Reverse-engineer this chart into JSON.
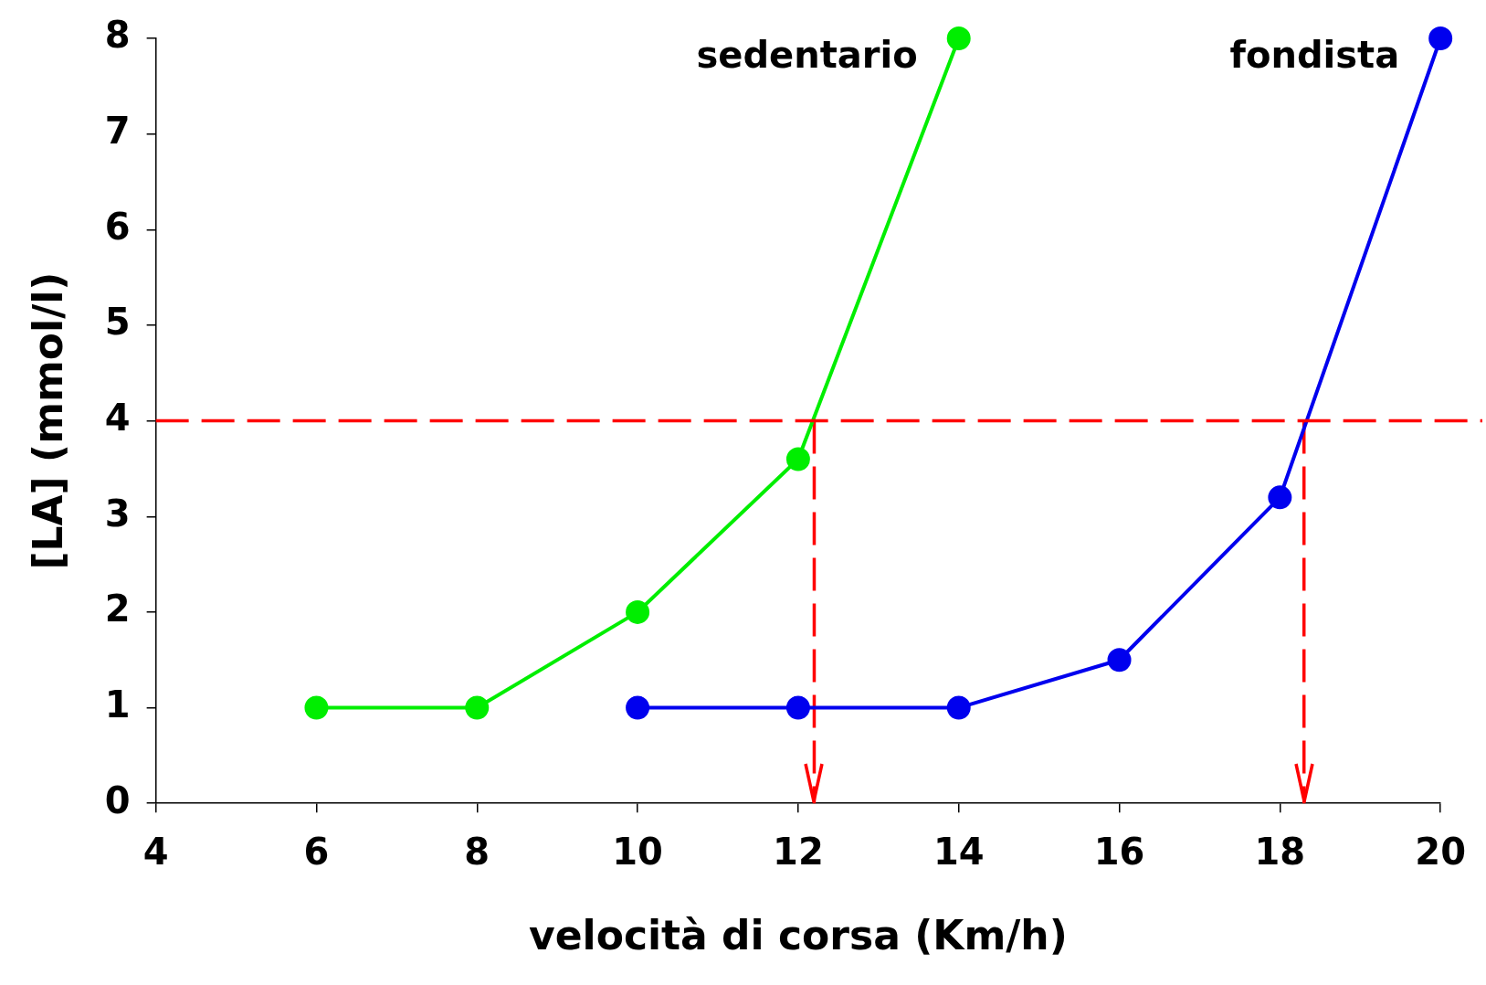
{
  "chart_data": {
    "type": "line",
    "xlabel": "velocità di corsa (Km/h)",
    "ylabel": "[LA] (mmol/l)",
    "xlim": [
      4,
      20
    ],
    "xticks": [
      4,
      6,
      8,
      10,
      12,
      14,
      16,
      18,
      20
    ],
    "ylim": [
      0,
      8
    ],
    "yticks": [
      0,
      1,
      2,
      3,
      4,
      5,
      6,
      7,
      8
    ],
    "grid": false,
    "legend": false,
    "marker": "circle",
    "line_style": "solid",
    "series": [
      {
        "name": "sedentario",
        "color": "#00ee00",
        "x": [
          6,
          8,
          10,
          12,
          14
        ],
        "values": [
          1,
          1,
          2,
          3.6,
          8
        ]
      },
      {
        "name": "fondista",
        "color": "#0000ee",
        "x": [
          10,
          12,
          14,
          16,
          18,
          20
        ],
        "values": [
          1,
          1,
          1,
          1.5,
          3.2,
          8
        ]
      },
      {
        "type": "line",
        "color": "#ff0000",
        "x": [
          12.2,
          12.2
        ],
        "values": [
          4,
          0
        ],
        "marker": "none",
        "line_style": "dashed"
      },
      {
        "type": "line",
        "color": "#ff0000",
        "x": [
          18.3,
          18.3
        ],
        "values": [
          4,
          0
        ],
        "marker": "none",
        "line_style": "dashed"
      }
    ],
    "ref_lines": [
      {
        "axis": "y",
        "value": 4,
        "color": "#ff0000",
        "line_style": "dashed"
      }
    ]
  }
}
